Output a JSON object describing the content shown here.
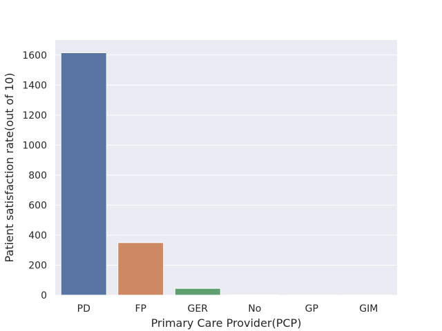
{
  "chart_data": {
    "type": "bar",
    "title": "",
    "xlabel": "Primary Care Provider(PCP)",
    "ylabel": "Patient satisfaction rate(out of 10)",
    "categories": [
      "PD",
      "FP",
      "GER",
      "No",
      "GP",
      "GIM"
    ],
    "values": [
      1615,
      350,
      45,
      2,
      1,
      1
    ],
    "colors": [
      "#5875a4",
      "#cc8963",
      "#5f9e6e",
      "#b55d60",
      "#857aab",
      "#8d7866"
    ],
    "ylim": [
      0,
      1700
    ],
    "yticks": [
      0,
      200,
      400,
      600,
      800,
      1000,
      1200,
      1400,
      1600
    ],
    "grid": true,
    "background": "#eaeaf2"
  }
}
